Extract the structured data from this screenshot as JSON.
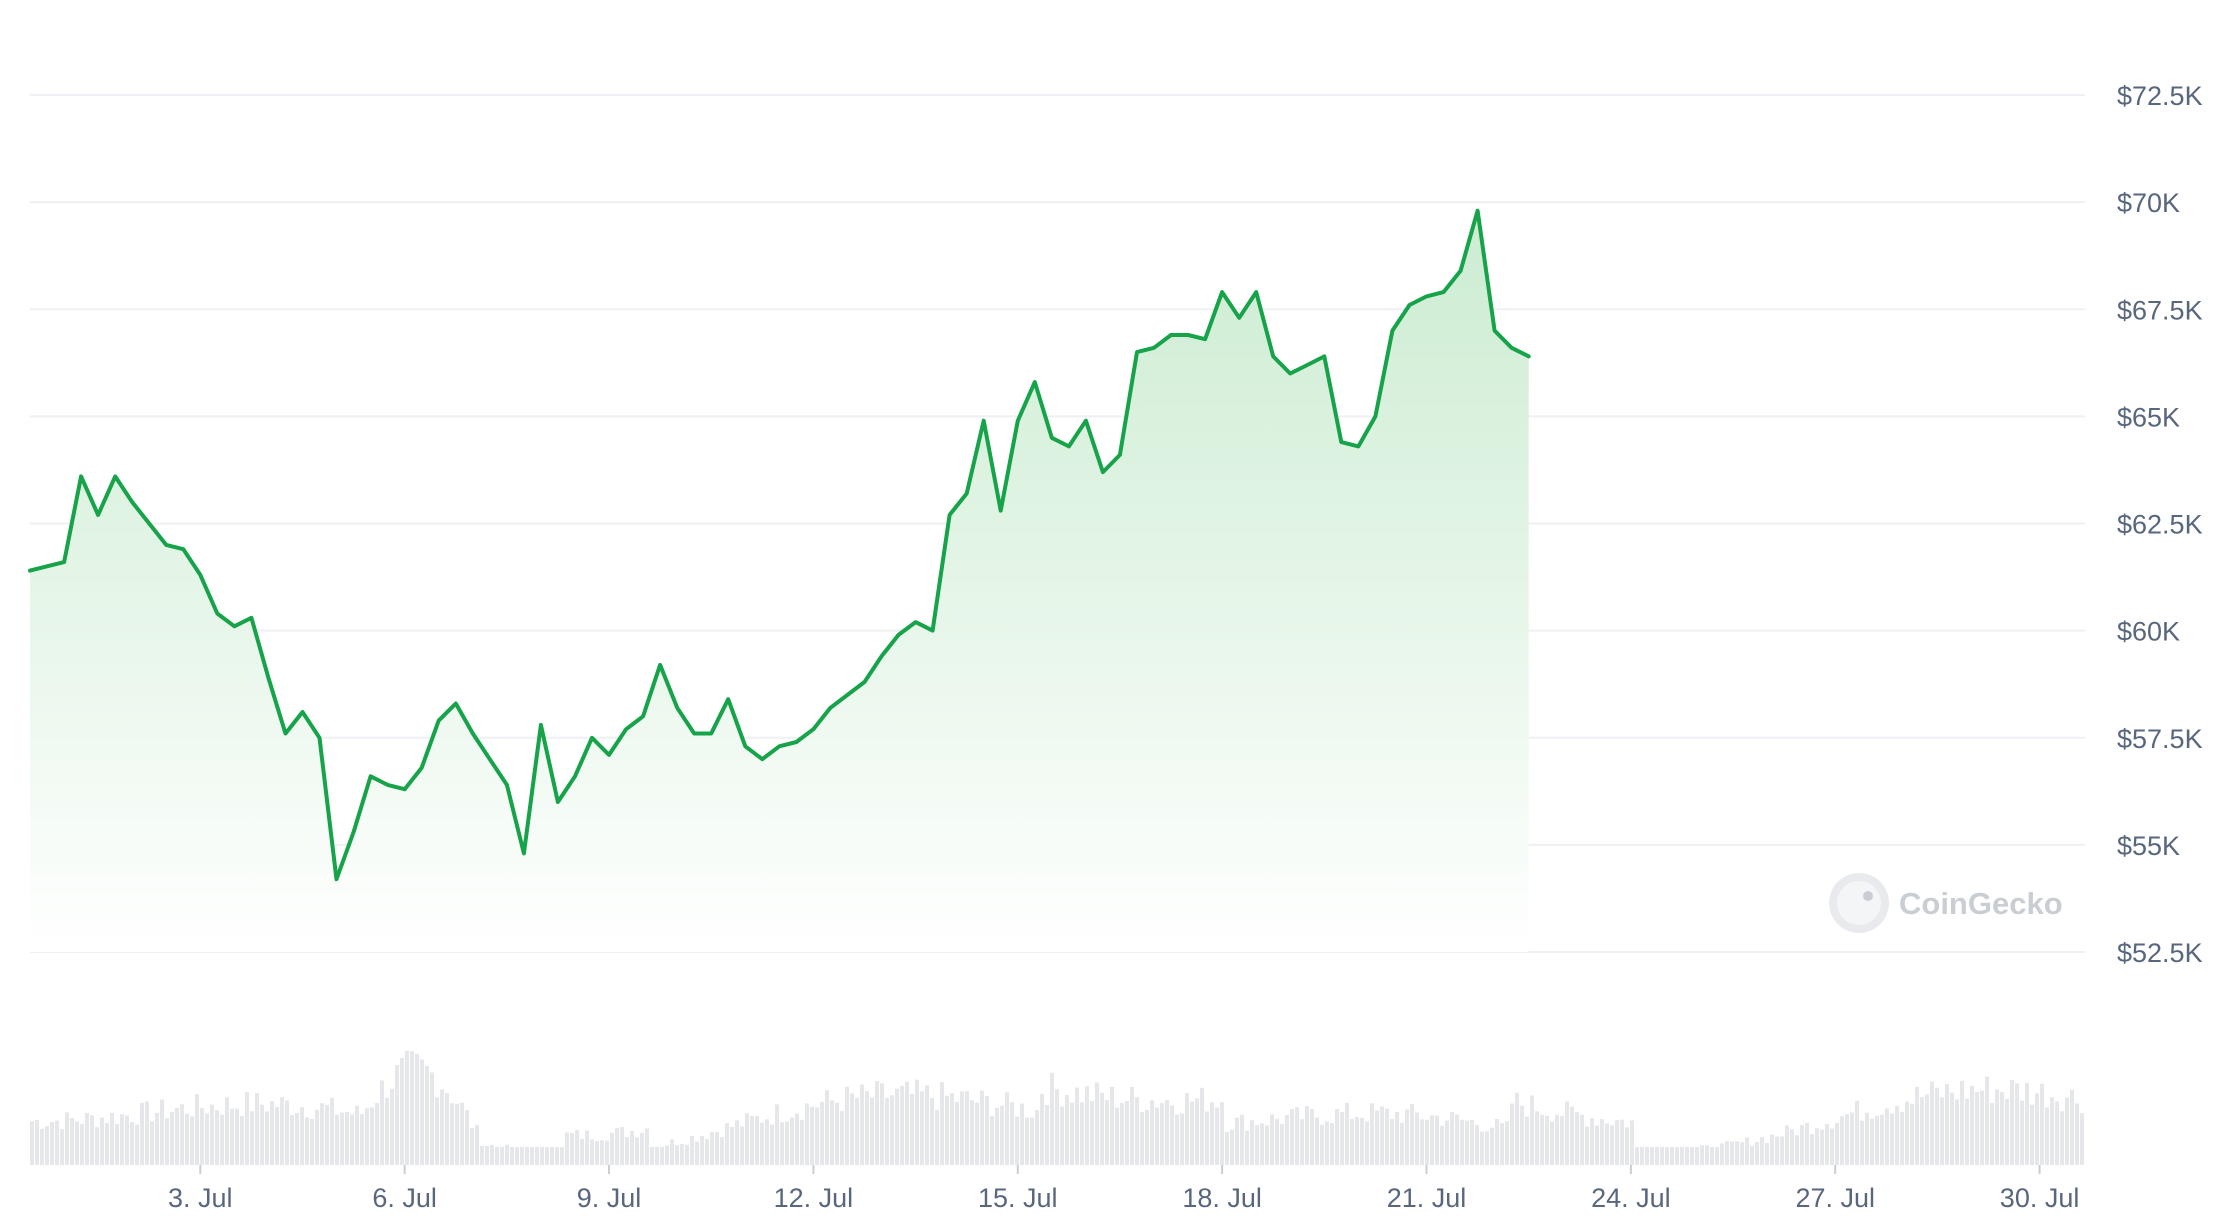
{
  "chart_data": {
    "type": "area",
    "title": "",
    "xlabel": "",
    "ylabel": "",
    "x_ticks": [
      "3. Jul",
      "6. Jul",
      "9. Jul",
      "12. Jul",
      "15. Jul",
      "18. Jul",
      "21. Jul",
      "24. Jul",
      "27. Jul",
      "30. Jul"
    ],
    "y_ticks": [
      "$52.5K",
      "$55K",
      "$57.5K",
      "$60K",
      "$62.5K",
      "$65K",
      "$67.5K",
      "$70K",
      "$72.5K"
    ],
    "ylim": [
      52500,
      72500
    ],
    "xlim": [
      "2024-06-30T12:00",
      "2024-07-30T16:00"
    ],
    "grid": true,
    "legend": "none",
    "series": [
      {
        "color": "#16a34a",
        "fill_gradient": [
          "#c9ebcf",
          "#ffffff"
        ],
        "points": [
          [
            "2024-06-30T12:00",
            61400
          ],
          [
            "2024-07-01T00:00",
            61600
          ],
          [
            "2024-07-01T06:00",
            63600
          ],
          [
            "2024-07-01T12:00",
            62700
          ],
          [
            "2024-07-01T18:00",
            63600
          ],
          [
            "2024-07-02T00:00",
            63000
          ],
          [
            "2024-07-02T06:00",
            62500
          ],
          [
            "2024-07-02T12:00",
            62000
          ],
          [
            "2024-07-02T18:00",
            61900
          ],
          [
            "2024-07-03T00:00",
            61300
          ],
          [
            "2024-07-03T06:00",
            60400
          ],
          [
            "2024-07-03T12:00",
            60100
          ],
          [
            "2024-07-03T18:00",
            60300
          ],
          [
            "2024-07-04T00:00",
            58900
          ],
          [
            "2024-07-04T06:00",
            57600
          ],
          [
            "2024-07-04T12:00",
            58100
          ],
          [
            "2024-07-04T18:00",
            57500
          ],
          [
            "2024-07-05T00:00",
            54200
          ],
          [
            "2024-07-05T06:00",
            55300
          ],
          [
            "2024-07-05T12:00",
            56600
          ],
          [
            "2024-07-05T18:00",
            56400
          ],
          [
            "2024-07-06T00:00",
            56300
          ],
          [
            "2024-07-06T06:00",
            56800
          ],
          [
            "2024-07-06T12:00",
            57900
          ],
          [
            "2024-07-06T18:00",
            58300
          ],
          [
            "2024-07-07T00:00",
            57600
          ],
          [
            "2024-07-07T06:00",
            57000
          ],
          [
            "2024-07-07T12:00",
            56400
          ],
          [
            "2024-07-07T18:00",
            54800
          ],
          [
            "2024-07-08T00:00",
            57800
          ],
          [
            "2024-07-08T06:00",
            56000
          ],
          [
            "2024-07-08T12:00",
            56600
          ],
          [
            "2024-07-08T18:00",
            57500
          ],
          [
            "2024-07-09T00:00",
            57100
          ],
          [
            "2024-07-09T06:00",
            57700
          ],
          [
            "2024-07-09T12:00",
            58000
          ],
          [
            "2024-07-09T18:00",
            59200
          ],
          [
            "2024-07-10T00:00",
            58200
          ],
          [
            "2024-07-10T06:00",
            57600
          ],
          [
            "2024-07-10T12:00",
            57600
          ],
          [
            "2024-07-10T18:00",
            58400
          ],
          [
            "2024-07-11T00:00",
            57300
          ],
          [
            "2024-07-11T06:00",
            57000
          ],
          [
            "2024-07-11T12:00",
            57300
          ],
          [
            "2024-07-11T18:00",
            57400
          ],
          [
            "2024-07-12T00:00",
            57700
          ],
          [
            "2024-07-12T06:00",
            58200
          ],
          [
            "2024-07-12T12:00",
            58500
          ],
          [
            "2024-07-12T18:00",
            58800
          ],
          [
            "2024-07-13T00:00",
            59400
          ],
          [
            "2024-07-13T06:00",
            59900
          ],
          [
            "2024-07-13T12:00",
            60200
          ],
          [
            "2024-07-13T18:00",
            60000
          ],
          [
            "2024-07-14T00:00",
            62700
          ],
          [
            "2024-07-14T06:00",
            63200
          ],
          [
            "2024-07-14T12:00",
            64900
          ],
          [
            "2024-07-14T18:00",
            62800
          ],
          [
            "2024-07-15T00:00",
            64900
          ],
          [
            "2024-07-15T06:00",
            65800
          ],
          [
            "2024-07-15T12:00",
            64500
          ],
          [
            "2024-07-15T18:00",
            64300
          ],
          [
            "2024-07-16T00:00",
            64900
          ],
          [
            "2024-07-16T06:00",
            63700
          ],
          [
            "2024-07-16T12:00",
            64100
          ],
          [
            "2024-07-16T18:00",
            66500
          ],
          [
            "2024-07-17T00:00",
            66600
          ],
          [
            "2024-07-17T06:00",
            66900
          ],
          [
            "2024-07-17T12:00",
            66900
          ],
          [
            "2024-07-17T18:00",
            66800
          ],
          [
            "2024-07-18T00:00",
            67900
          ],
          [
            "2024-07-18T06:00",
            67300
          ],
          [
            "2024-07-18T12:00",
            67900
          ],
          [
            "2024-07-18T18:00",
            66400
          ],
          [
            "2024-07-19T00:00",
            66000
          ],
          [
            "2024-07-19T06:00",
            66200
          ],
          [
            "2024-07-19T12:00",
            66400
          ],
          [
            "2024-07-19T18:00",
            64400
          ],
          [
            "2024-07-20T00:00",
            64300
          ],
          [
            "2024-07-20T06:00",
            65000
          ],
          [
            "2024-07-20T12:00",
            67000
          ],
          [
            "2024-07-20T18:00",
            67600
          ],
          [
            "2024-07-21T00:00",
            67800
          ],
          [
            "2024-07-21T06:00",
            67900
          ],
          [
            "2024-07-21T12:00",
            68400
          ],
          [
            "2024-07-21T18:00",
            69800
          ],
          [
            "2024-07-22T00:00",
            67000
          ],
          [
            "2024-07-22T06:00",
            66600
          ],
          [
            "2024-07-22T12:00",
            66400
          ]
        ]
      }
    ],
    "volume_note": "light grey volume bars along the bottom, no values printed"
  },
  "watermark": {
    "text": "CoinGecko",
    "icon": "gecko-logo-icon"
  },
  "colors": {
    "line": "#16a34a",
    "grid": "#eef0f3",
    "tick_text": "#58667e",
    "volume": "#e5e7ea"
  }
}
